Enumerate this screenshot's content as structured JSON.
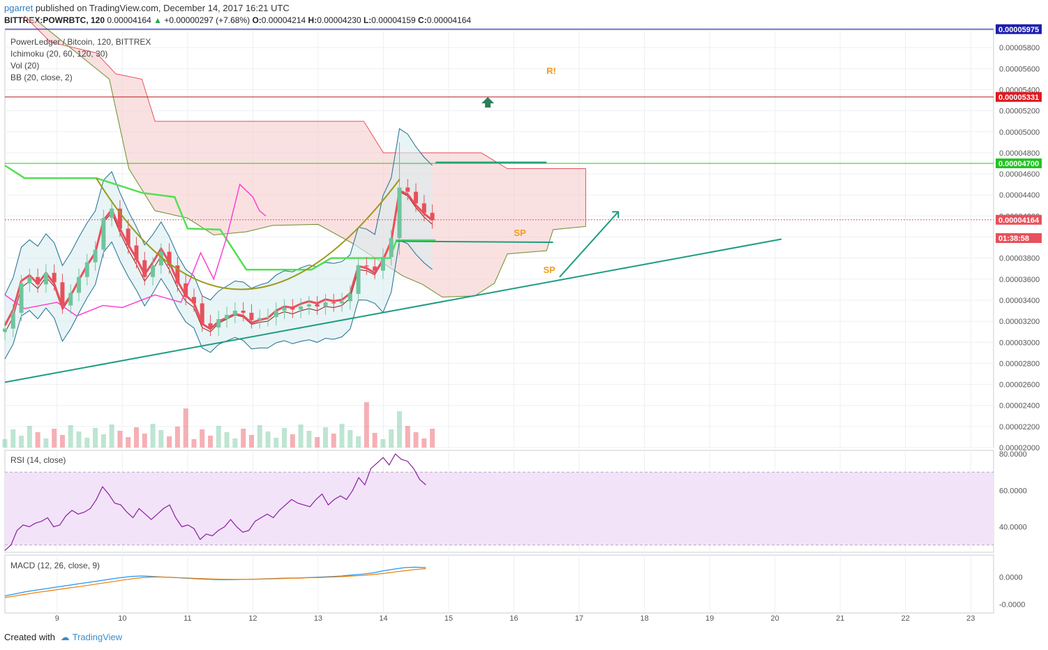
{
  "header": {
    "user": "pgarret",
    "published_text": "published on TradingView.com, December 14, 2017 16:21 UTC",
    "symbol": "BITTREX:POWRBTC, 120",
    "last": "0.00004164",
    "change": "+0.00000297 (+7.68%)",
    "open_label": "O:",
    "open": "0.00004214",
    "high_label": "H:",
    "high": "0.00004230",
    "low_label": "L:",
    "low": "0.00004159",
    "close_label": "C:",
    "close": "0.00004164"
  },
  "legends": {
    "main_title": "PowerLedger / Bitcoin, 120, BITTREX",
    "ichimoku": "Ichimoku (20, 60, 120, 30)",
    "vol": "Vol (20)",
    "bb": "BB (20, close, 2)",
    "rsi": "RSI (14, close)",
    "macd": "MACD (12, 26, close, 9)"
  },
  "footer": {
    "created_with": "Created with",
    "brand": "TradingView"
  },
  "colors": {
    "up": "#6fc59c",
    "down": "#e8505b",
    "grid": "#eceff2",
    "cloud": "#f6c8c8",
    "bb_fill": "#d9ecf0",
    "trend": "#1d9c80",
    "rsi_band": "#f2e3f8",
    "rsi_line": "#8a1fa0",
    "annotation": "#f29b1b"
  },
  "chart_data": [
    {
      "type": "candlestick",
      "title": "PowerLedger / Bitcoin, 120, BITTREX",
      "x_ticks": [
        "9",
        "10",
        "11",
        "12",
        "13",
        "14",
        "15",
        "16",
        "17",
        "18",
        "19",
        "20",
        "21",
        "22",
        "23"
      ],
      "x_range_days": [
        8.2,
        23.35
      ],
      "ylim": [
        2e-05,
        6e-05
      ],
      "y_ticks": [
        "0.00005800",
        "0.00005600",
        "0.00005400",
        "0.00005200",
        "0.00005000",
        "0.00004800",
        "0.00004600",
        "0.00004400",
        "0.00004200",
        "0.00004000",
        "0.00003800",
        "0.00003600",
        "0.00003400",
        "0.00003200",
        "0.00003000",
        "0.00002800",
        "0.00002600",
        "0.00002400",
        "0.00002200",
        "0.00002000"
      ],
      "price_badges": [
        {
          "label": "0.00005975",
          "value": 5.975e-05,
          "color": "#1f1fb0"
        },
        {
          "label": "0.00005331",
          "value": 5.331e-05,
          "color": "#e0191f"
        },
        {
          "label": "0.00004700",
          "value": 4.7e-05,
          "color": "#22c422"
        },
        {
          "label": "0.00004164",
          "value": 4.164e-05,
          "color": "#e8505b"
        },
        {
          "label": "01:38:58",
          "value": 3.99e-05,
          "color": "#e8505b"
        }
      ],
      "horizontal_levels": [
        {
          "value": 5.975e-05,
          "color": "#1f1fb0"
        },
        {
          "value": 5.331e-05,
          "color": "#b51a1a"
        },
        {
          "value": 4.7e-05,
          "color": "#22c422"
        }
      ],
      "annotations": [
        {
          "text": "R!",
          "day": 16.5,
          "value": 5.55e-05
        },
        {
          "text": "SP",
          "day": 16.0,
          "value": 4.01e-05
        },
        {
          "text": "SP",
          "day": 16.45,
          "value": 3.66e-05
        }
      ],
      "close_series": [
        3.13e-05,
        3.28e-05,
        3.56e-05,
        3.62e-05,
        3.55e-05,
        3.66e-05,
        3.57e-05,
        3.35e-05,
        3.47e-05,
        3.62e-05,
        3.76e-05,
        3.88e-05,
        4.18e-05,
        4.27e-05,
        4.08e-05,
        3.92e-05,
        3.78e-05,
        3.62e-05,
        3.73e-05,
        3.86e-05,
        3.73e-05,
        3.56e-05,
        3.43e-05,
        3.37e-05,
        3.18e-05,
        3.14e-05,
        3.22e-05,
        3.26e-05,
        3.3e-05,
        3.28e-05,
        3.21e-05,
        3.23e-05,
        3.24e-05,
        3.3e-05,
        3.33e-05,
        3.31e-05,
        3.34e-05,
        3.36e-05,
        3.34e-05,
        3.38e-05,
        3.37e-05,
        3.39e-05,
        3.46e-05,
        3.73e-05,
        3.72e-05,
        3.68e-05,
        3.81e-05,
        3.99e-05,
        4.47e-05,
        4.43e-05,
        4.32e-05,
        4.23e-05,
        4.16e-05
      ]
    },
    {
      "type": "line",
      "title": "RSI (14, close)",
      "y_ticks": [
        "80.0000",
        "60.0000",
        "40.0000"
      ],
      "ylim": [
        26,
        82
      ],
      "band": [
        30,
        70
      ],
      "values": [
        27,
        30,
        38,
        41,
        40,
        42,
        43,
        45,
        40,
        41,
        46,
        49,
        47,
        48,
        50,
        55,
        62,
        58,
        53,
        52,
        48,
        45,
        50,
        47,
        44,
        47,
        50,
        52,
        45,
        40,
        41,
        39,
        33,
        36,
        35,
        38,
        40,
        44,
        40,
        37,
        38,
        43,
        45,
        47,
        45,
        49,
        52,
        55,
        53,
        52,
        51,
        55,
        58,
        52,
        55,
        57,
        55,
        60,
        67,
        63,
        72,
        75,
        78,
        74,
        80,
        77,
        76,
        72,
        66,
        63
      ]
    },
    {
      "type": "line",
      "title": "MACD (12, 26, close, 9)",
      "y_ticks": [
        "0.0000",
        "-0.0000"
      ],
      "series": [
        {
          "name": "MACD",
          "values": [
            -0.9,
            -0.8,
            -0.7,
            -0.62,
            -0.55,
            -0.47,
            -0.4,
            -0.32,
            -0.25,
            -0.18,
            -0.1,
            -0.03,
            0.03,
            0.05,
            0.03,
            0.0,
            -0.02,
            -0.05,
            -0.08,
            -0.1,
            -0.12,
            -0.13,
            -0.12,
            -0.11,
            -0.1,
            -0.08,
            -0.06,
            -0.05,
            -0.04,
            -0.02,
            0.0,
            0.02,
            0.05,
            0.1,
            0.14,
            0.2,
            0.3,
            0.38,
            0.45,
            0.47,
            0.45
          ]
        },
        {
          "name": "Signal",
          "values": [
            -0.98,
            -0.9,
            -0.82,
            -0.74,
            -0.67,
            -0.6,
            -0.53,
            -0.46,
            -0.39,
            -0.31,
            -0.24,
            -0.16,
            -0.09,
            -0.03,
            0.0,
            0.0,
            -0.02,
            -0.04,
            -0.06,
            -0.08,
            -0.1,
            -0.11,
            -0.11,
            -0.11,
            -0.1,
            -0.09,
            -0.08,
            -0.06,
            -0.05,
            -0.03,
            -0.02,
            0.0,
            0.02,
            0.05,
            0.08,
            0.12,
            0.17,
            0.24,
            0.3,
            0.36,
            0.4
          ]
        }
      ]
    }
  ]
}
